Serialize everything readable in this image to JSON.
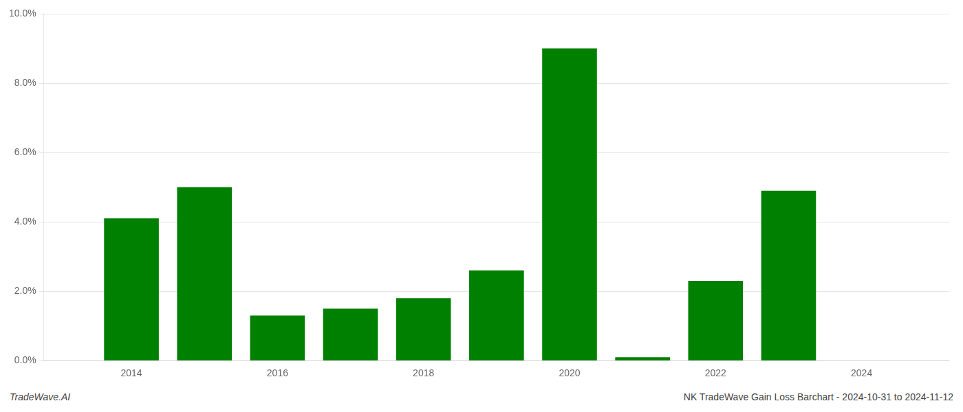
{
  "chart_data": {
    "type": "bar",
    "x": [
      2014,
      2015,
      2016,
      2017,
      2018,
      2019,
      2020,
      2021,
      2022,
      2023
    ],
    "values": [
      0.041,
      0.05,
      0.013,
      0.015,
      0.018,
      0.026,
      0.09,
      0.001,
      0.023,
      0.049
    ],
    "color": "#008000",
    "xlim": [
      2012.8,
      2025.2
    ],
    "xticks": [
      2014,
      2016,
      2018,
      2020,
      2022,
      2024
    ],
    "ylim": [
      0,
      0.1
    ],
    "yticks": [
      {
        "value": 0.0,
        "label": "0.0%"
      },
      {
        "value": 0.02,
        "label": "2.0%"
      },
      {
        "value": 0.04,
        "label": "4.0%"
      },
      {
        "value": 0.06,
        "label": "6.0%"
      },
      {
        "value": 0.08,
        "label": "8.0%"
      },
      {
        "value": 0.1,
        "label": "10.0%"
      }
    ],
    "grid": true,
    "annotations": [
      "TradeWave.AI",
      "NK TradeWave Gain Loss Barchart - 2024-10-31 to 2024-11-12"
    ]
  }
}
